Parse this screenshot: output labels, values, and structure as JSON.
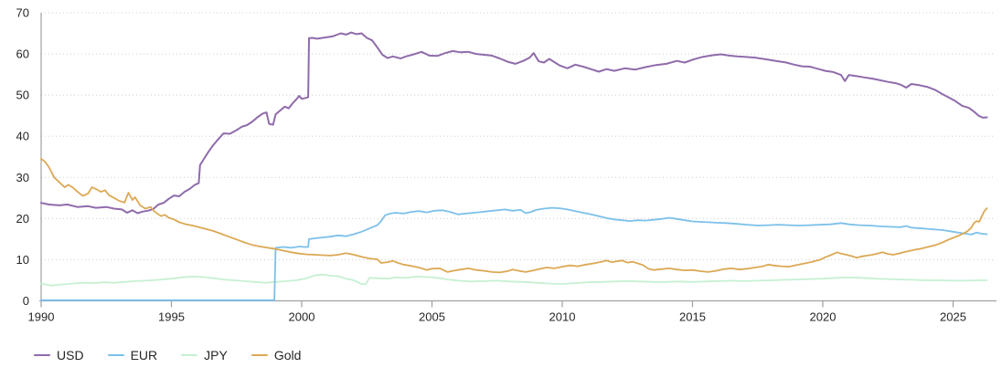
{
  "chart_data": {
    "type": "line",
    "title": "",
    "xlabel": "",
    "ylabel": "",
    "x_axis": {
      "ticks": [
        1990,
        1995,
        2000,
        2005,
        2010,
        2015,
        2020,
        2025
      ],
      "range": [
        1990,
        2026.55
      ]
    },
    "y_axis": {
      "ticks": [
        0,
        10,
        20,
        30,
        40,
        50,
        60,
        70
      ],
      "range": [
        0,
        70
      ]
    },
    "grid": "horizontal-dotted",
    "grid_color": "#d2d2d2",
    "axis_color": "#a0a0a0",
    "tick_label_color": "#262626",
    "legend_position": "bottom-left",
    "series": [
      {
        "name": "JPY",
        "color": "#c6f0d3",
        "width": 1.8,
        "x": [
          1990,
          1990.4,
          1990.8,
          1991.2,
          1991.6,
          1992,
          1992.4,
          1992.8,
          1993.2,
          1993.6,
          1994,
          1994.5,
          1995,
          1995.4,
          1995.8,
          1996.2,
          1996.6,
          1997,
          1997.4,
          1997.8,
          1998.2,
          1998.6,
          1999,
          1999.4,
          1999.8,
          2000.2,
          2000.5,
          2000.8,
          2001.1,
          2001.4,
          2001.7,
          2002,
          2002.3,
          2002.45,
          2002.6,
          2002.9,
          2003.3,
          2003.6,
          2004,
          2004.4,
          2004.8,
          2005.2,
          2005.6,
          2006,
          2006.5,
          2007,
          2007.5,
          2008,
          2008.5,
          2009,
          2009.5,
          2010,
          2010.5,
          2011,
          2011.5,
          2012,
          2012.5,
          2013,
          2013.5,
          2014,
          2014.5,
          2015,
          2015.5,
          2016,
          2016.5,
          2017,
          2017.5,
          2018,
          2018.5,
          2019,
          2019.5,
          2020,
          2020.5,
          2021,
          2021.5,
          2022,
          2022.5,
          2023,
          2023.5,
          2024,
          2024.5,
          2025,
          2025.5,
          2026,
          2026.3
        ],
        "y": [
          4.2,
          3.7,
          4,
          4.2,
          4.4,
          4.3,
          4.5,
          4.4,
          4.6,
          4.8,
          4.9,
          5.1,
          5.4,
          5.7,
          5.9,
          5.8,
          5.5,
          5.2,
          5,
          4.8,
          4.6,
          4.4,
          4.6,
          4.8,
          5,
          5.5,
          6.2,
          6.4,
          6.1,
          6,
          5.4,
          5,
          4.1,
          4,
          5.6,
          5.5,
          5.4,
          5.7,
          5.6,
          5.9,
          5.8,
          5.6,
          5.2,
          4.9,
          4.7,
          4.8,
          4.9,
          4.7,
          4.6,
          4.4,
          4.2,
          4.1,
          4.3,
          4.5,
          4.6,
          4.7,
          4.8,
          4.7,
          4.6,
          4.6,
          4.7,
          4.6,
          4.7,
          4.8,
          4.9,
          4.8,
          4.9,
          5,
          5.1,
          5.2,
          5.3,
          5.4,
          5.6,
          5.7,
          5.6,
          5.4,
          5.3,
          5.2,
          5.1,
          5,
          5,
          4.9,
          4.9,
          5,
          5
        ]
      },
      {
        "name": "EUR",
        "color": "#7cc0ea",
        "width": 1.8,
        "x": [
          1990,
          1993,
          1996,
          1998.95,
          1999,
          1999.3,
          1999.6,
          1999.9,
          2000.1,
          2000.25,
          2000.28,
          2000.5,
          2000.8,
          2001.1,
          2001.4,
          2001.7,
          2002,
          2002.3,
          2002.6,
          2002.9,
          2003.05,
          2003.2,
          2003.4,
          2003.6,
          2003.9,
          2004.2,
          2004.5,
          2004.8,
          2005.1,
          2005.4,
          2005.7,
          2006,
          2006.3,
          2006.6,
          2006.9,
          2007.2,
          2007.5,
          2007.8,
          2008.1,
          2008.4,
          2008.6,
          2008.8,
          2009,
          2009.3,
          2009.6,
          2009.9,
          2010.2,
          2010.5,
          2010.8,
          2011.1,
          2011.4,
          2011.7,
          2012,
          2012.3,
          2012.6,
          2012.9,
          2013.2,
          2013.5,
          2013.8,
          2014.1,
          2014.4,
          2014.7,
          2015,
          2015.3,
          2015.6,
          2015.9,
          2016.3,
          2016.7,
          2017.1,
          2017.5,
          2017.9,
          2018.3,
          2018.7,
          2019.1,
          2019.5,
          2019.9,
          2020.3,
          2020.7,
          2021,
          2021.4,
          2021.8,
          2022.2,
          2022.6,
          2023,
          2023.2,
          2023.4,
          2023.8,
          2024.2,
          2024.6,
          2025,
          2025.4,
          2025.7,
          2025.9,
          2026.1,
          2026.3
        ],
        "y": [
          0.15,
          0.15,
          0.15,
          0.15,
          12.9,
          13.1,
          12.9,
          13.2,
          13.1,
          13.1,
          15,
          15.2,
          15.4,
          15.6,
          15.9,
          15.7,
          16.2,
          16.8,
          17.6,
          18.4,
          19.4,
          20.8,
          21.2,
          21.4,
          21.2,
          21.6,
          21.8,
          21.5,
          21.9,
          22,
          21.6,
          21,
          21.2,
          21.4,
          21.6,
          21.8,
          22,
          22.2,
          21.9,
          22.1,
          21.3,
          21.6,
          22.1,
          22.4,
          22.6,
          22.5,
          22.2,
          21.8,
          21.4,
          21,
          20.6,
          20.1,
          19.8,
          19.6,
          19.4,
          19.6,
          19.5,
          19.7,
          19.9,
          20.2,
          19.9,
          19.6,
          19.3,
          19.2,
          19.1,
          19,
          18.9,
          18.7,
          18.5,
          18.3,
          18.4,
          18.5,
          18.4,
          18.3,
          18.4,
          18.5,
          18.6,
          18.9,
          18.6,
          18.4,
          18.3,
          18.1,
          18,
          17.9,
          18.2,
          17.8,
          17.6,
          17.4,
          17.2,
          16.8,
          16.4,
          16.1,
          16.6,
          16.3,
          16.2
        ]
      },
      {
        "name": "USD",
        "color": "#8f6bab",
        "width": 2,
        "x": [
          1990,
          1990.3,
          1990.7,
          1991,
          1991.4,
          1991.8,
          1992.1,
          1992.5,
          1992.8,
          1993.1,
          1993.3,
          1993.5,
          1993.7,
          1993.9,
          1994.1,
          1994.3,
          1994.5,
          1994.7,
          1994.9,
          1995.1,
          1995.3,
          1995.5,
          1995.7,
          1995.9,
          1996.05,
          1996.1,
          1996.25,
          1996.4,
          1996.6,
          1996.8,
          1997,
          1997.25,
          1997.5,
          1997.7,
          1997.9,
          1998.1,
          1998.3,
          1998.5,
          1998.65,
          1998.75,
          1998.9,
          1999,
          1999.2,
          1999.35,
          1999.5,
          1999.65,
          1999.8,
          1999.9,
          2000,
          2000.15,
          2000.25,
          2000.28,
          2000.4,
          2000.6,
          2000.8,
          2001,
          2001.2,
          2001.5,
          2001.7,
          2001.9,
          2002.1,
          2002.3,
          2002.5,
          2002.7,
          2002.9,
          2003.1,
          2003.3,
          2003.5,
          2003.8,
          2004,
          2004.3,
          2004.6,
          2004.9,
          2005.2,
          2005.5,
          2005.8,
          2006.1,
          2006.4,
          2006.7,
          2007,
          2007.3,
          2007.6,
          2007.9,
          2008.2,
          2008.5,
          2008.75,
          2008.9,
          2009.1,
          2009.3,
          2009.5,
          2009.7,
          2009.9,
          2010.2,
          2010.5,
          2010.8,
          2011.1,
          2011.4,
          2011.7,
          2012,
          2012.4,
          2012.8,
          2013.2,
          2013.6,
          2014,
          2014.4,
          2014.7,
          2015,
          2015.4,
          2015.8,
          2016.1,
          2016.4,
          2016.7,
          2017,
          2017.4,
          2017.8,
          2018.2,
          2018.6,
          2018.9,
          2019.2,
          2019.5,
          2019.8,
          2020.1,
          2020.4,
          2020.7,
          2020.85,
          2021,
          2021.3,
          2021.6,
          2021.9,
          2022.2,
          2022.5,
          2022.8,
          2023,
          2023.2,
          2023.4,
          2023.7,
          2024,
          2024.3,
          2024.6,
          2024.9,
          2025.1,
          2025.35,
          2025.6,
          2025.8,
          2026,
          2026.15,
          2026.3
        ],
        "y": [
          23.8,
          23.4,
          23.2,
          23.4,
          22.8,
          23,
          22.6,
          22.8,
          22.4,
          22.2,
          21.4,
          22,
          21.3,
          21.7,
          21.9,
          22.3,
          23.4,
          23.8,
          24.8,
          25.6,
          25.4,
          26.5,
          27.2,
          28.2,
          28.6,
          33,
          34.5,
          36,
          37.8,
          39.3,
          40.7,
          40.6,
          41.5,
          42.3,
          42.7,
          43.5,
          44.6,
          45.5,
          45.8,
          43,
          42.8,
          45.3,
          46.4,
          47.2,
          46.8,
          48,
          49,
          49.8,
          49.1,
          49.3,
          49.5,
          63.8,
          63.9,
          63.7,
          63.9,
          64.1,
          64.3,
          65,
          64.7,
          65.2,
          64.8,
          65,
          63.9,
          63.3,
          61.6,
          59.8,
          59,
          59.4,
          58.9,
          59.4,
          59.9,
          60.5,
          59.6,
          59.5,
          60.2,
          60.7,
          60.4,
          60.5,
          60,
          59.8,
          59.6,
          58.9,
          58.1,
          57.6,
          58.3,
          59.1,
          60.2,
          58.2,
          57.9,
          58.8,
          58,
          57.2,
          56.5,
          57.4,
          56.9,
          56.3,
          55.7,
          56.3,
          55.9,
          56.5,
          56.2,
          56.8,
          57.3,
          57.6,
          58.3,
          57.9,
          58.6,
          59.3,
          59.7,
          59.9,
          59.6,
          59.4,
          59.3,
          59.1,
          58.7,
          58.3,
          57.9,
          57.4,
          57,
          56.9,
          56.4,
          55.9,
          55.6,
          54.9,
          53.4,
          54.9,
          54.6,
          54.3,
          54,
          53.6,
          53.2,
          52.9,
          52.5,
          51.8,
          52.7,
          52.4,
          52,
          51.3,
          50.2,
          49.2,
          48.5,
          47.4,
          46.9,
          46,
          44.9,
          44.5,
          44.6
        ]
      },
      {
        "name": "Gold",
        "color": "#dca854",
        "width": 1.8,
        "x": [
          1990,
          1990.15,
          1990.3,
          1990.5,
          1990.7,
          1990.9,
          1991.05,
          1991.2,
          1991.4,
          1991.6,
          1991.8,
          1991.95,
          1992.1,
          1992.3,
          1992.45,
          1992.6,
          1992.8,
          1993,
          1993.2,
          1993.35,
          1993.5,
          1993.6,
          1993.8,
          1994,
          1994.2,
          1994.35,
          1994.6,
          1994.75,
          1994.9,
          1995.1,
          1995.3,
          1995.5,
          1995.8,
          1996,
          1996.3,
          1996.6,
          1996.9,
          1997.2,
          1997.5,
          1997.8,
          1998.1,
          1998.4,
          1998.7,
          1999,
          1999.3,
          1999.6,
          1999.9,
          2000.2,
          2000.5,
          2000.8,
          2001.1,
          2001.4,
          2001.7,
          2002,
          2002.3,
          2002.6,
          2002.9,
          2003.05,
          2003.3,
          2003.5,
          2003.7,
          2003.9,
          2004.2,
          2004.5,
          2004.8,
          2005,
          2005.3,
          2005.6,
          2005.8,
          2006.1,
          2006.4,
          2006.7,
          2007,
          2007.3,
          2007.6,
          2007.9,
          2008.1,
          2008.4,
          2008.6,
          2008.9,
          2009.1,
          2009.4,
          2009.7,
          2010,
          2010.3,
          2010.6,
          2010.9,
          2011.2,
          2011.5,
          2011.7,
          2011.9,
          2012.1,
          2012.3,
          2012.5,
          2012.7,
          2012.9,
          2013.1,
          2013.3,
          2013.5,
          2013.8,
          2014.1,
          2014.4,
          2014.7,
          2015,
          2015.3,
          2015.6,
          2015.9,
          2016.2,
          2016.5,
          2016.8,
          2017.1,
          2017.4,
          2017.7,
          2017.9,
          2018.1,
          2018.4,
          2018.7,
          2019,
          2019.3,
          2019.6,
          2019.9,
          2020.1,
          2020.3,
          2020.55,
          2020.7,
          2020.9,
          2021.1,
          2021.3,
          2021.5,
          2021.7,
          2021.9,
          2022.1,
          2022.3,
          2022.5,
          2022.7,
          2022.9,
          2023.1,
          2023.3,
          2023.5,
          2023.7,
          2023.9,
          2024.1,
          2024.35,
          2024.6,
          2024.8,
          2025,
          2025.2,
          2025.4,
          2025.55,
          2025.7,
          2025.8,
          2025.9,
          2026,
          2026.1,
          2026.2,
          2026.3
        ],
        "y": [
          34.5,
          33.8,
          32.5,
          30,
          28.8,
          27.6,
          28.2,
          27.6,
          26.5,
          25.5,
          26.1,
          27.6,
          27.2,
          26.5,
          26.9,
          25.7,
          25,
          24.3,
          23.9,
          26.3,
          24.5,
          25.2,
          23.2,
          22.4,
          22.8,
          21.7,
          20.6,
          20.9,
          20.2,
          19.8,
          19.1,
          18.7,
          18.3,
          18,
          17.5,
          17,
          16.3,
          15.6,
          14.9,
          14.2,
          13.6,
          13.2,
          12.9,
          12.6,
          12.2,
          11.8,
          11.5,
          11.3,
          11.2,
          11.1,
          11,
          11.2,
          11.6,
          11.2,
          10.7,
          10.3,
          10.1,
          9.2,
          9.4,
          9.7,
          9.2,
          8.8,
          8.5,
          8.1,
          7.5,
          7.8,
          7.9,
          7,
          7.3,
          7.6,
          7.9,
          7.5,
          7.3,
          7,
          6.9,
          7.2,
          7.6,
          7.2,
          7,
          7.4,
          7.7,
          8.1,
          7.9,
          8.3,
          8.6,
          8.4,
          8.8,
          9.1,
          9.5,
          9.8,
          9.4,
          9.6,
          9.8,
          9.3,
          9.5,
          9.1,
          8.7,
          7.8,
          7.5,
          7.7,
          7.9,
          7.6,
          7.4,
          7.5,
          7.2,
          7,
          7.3,
          7.7,
          7.9,
          7.6,
          7.8,
          8.1,
          8.4,
          8.8,
          8.6,
          8.4,
          8.3,
          8.7,
          9.1,
          9.5,
          10,
          10.6,
          11.1,
          11.8,
          11.5,
          11.2,
          10.9,
          10.5,
          10.8,
          11,
          11.2,
          11.5,
          11.8,
          11.4,
          11.2,
          11.5,
          11.8,
          12.1,
          12.4,
          12.6,
          12.9,
          13.2,
          13.6,
          14.2,
          14.8,
          15.3,
          15.8,
          16.4,
          16.9,
          17.8,
          18.9,
          19.4,
          19.2,
          20.5,
          21.8,
          22.5
        ]
      }
    ],
    "legend_order": [
      "USD",
      "EUR",
      "JPY",
      "Gold"
    ]
  }
}
